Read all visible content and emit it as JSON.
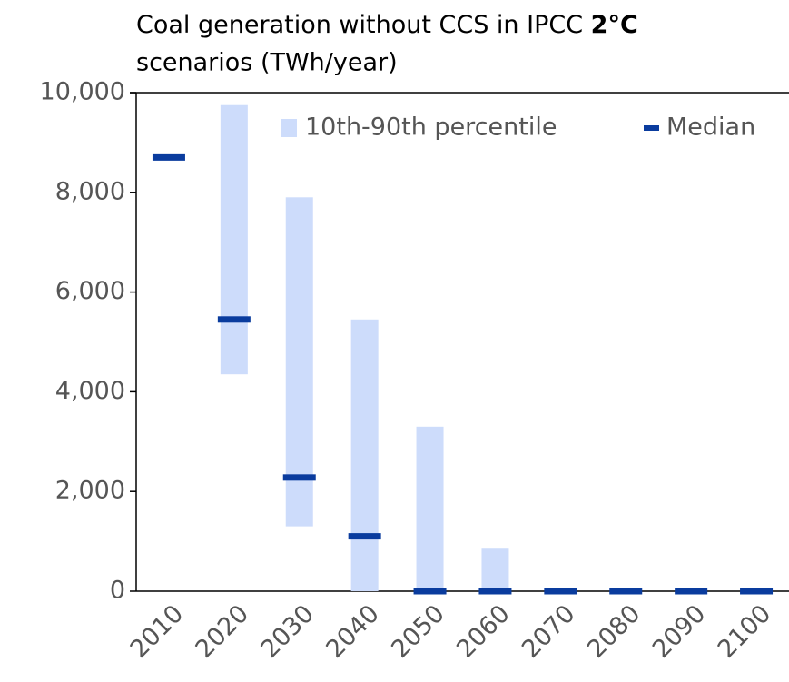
{
  "chart_data": {
    "type": "range-bar",
    "title": [
      "Coal generation without CCS in IPCC",
      "2°C",
      "scenarios (TWh/year)"
    ],
    "categories": [
      "2010",
      "2020",
      "2030",
      "2040",
      "2050",
      "2060",
      "2070",
      "2080",
      "2090",
      "2100"
    ],
    "series": [
      {
        "name": "10th-90th percentile",
        "color": "#cddcfb",
        "low": [
          null,
          4350,
          1300,
          0,
          0,
          0,
          null,
          null,
          null,
          null
        ],
        "high": [
          null,
          9750,
          7900,
          5450,
          3300,
          870,
          null,
          null,
          null,
          null
        ]
      },
      {
        "name": "Median",
        "color": "#0a3c9e",
        "values": [
          8700,
          5450,
          2280,
          1100,
          0,
          0,
          0,
          0,
          0,
          0
        ]
      }
    ],
    "ylim": [
      0,
      10000
    ],
    "yticks": [
      0,
      {
        "value": 2000,
        "label": "2,000"
      },
      {
        "value": 4000,
        "label": "4,000"
      },
      {
        "value": 6000,
        "label": "6,000"
      },
      {
        "value": 8000,
        "label": "8,000"
      },
      {
        "value": 10000,
        "label": "10,000"
      }
    ],
    "legend": "top-right"
  }
}
